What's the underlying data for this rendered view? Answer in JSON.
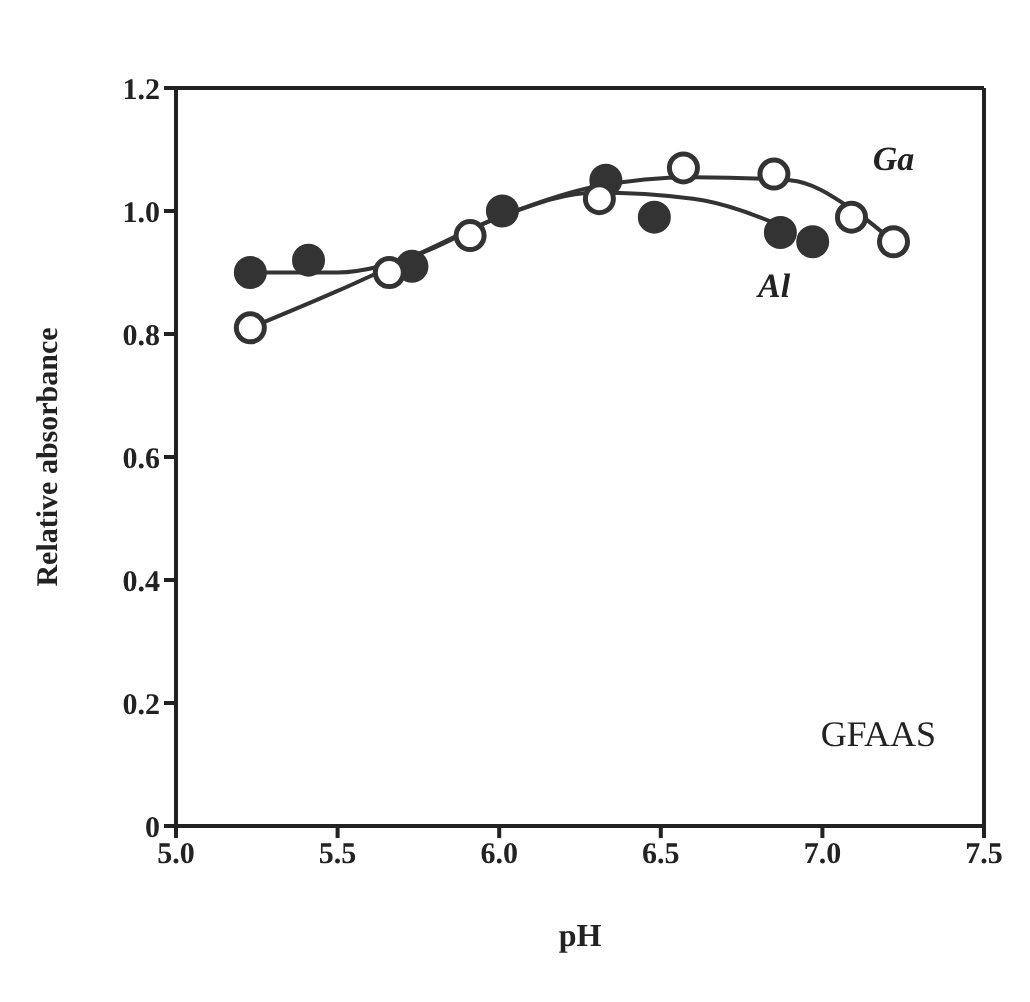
{
  "chart_data": {
    "type": "scatter",
    "xlabel": "pH",
    "ylabel": "Relative absorbance",
    "xlim": [
      5.0,
      7.5
    ],
    "xticks": [
      {
        "value": 5.0,
        "label": "5.0"
      },
      {
        "value": 5.5,
        "label": "5.5"
      },
      {
        "value": 6.0,
        "label": "6.0"
      },
      {
        "value": 6.5,
        "label": "6.5"
      },
      {
        "value": 7.0,
        "label": "7.0"
      },
      {
        "value": 7.5,
        "label": "7.5"
      }
    ],
    "ylim": [
      0,
      1.2
    ],
    "yticks": [
      0,
      {
        "value": 0.2,
        "label": "0.2"
      },
      {
        "value": 0.4,
        "label": "0.4"
      },
      {
        "value": 0.6,
        "label": "0.6"
      },
      {
        "value": 0.8,
        "label": "0.8"
      },
      {
        "value": 1.0,
        "label": "1.0"
      },
      {
        "value": 1.2,
        "label": "1.2"
      }
    ],
    "grid": false,
    "legend": false,
    "series": [
      {
        "marker": "circle",
        "color": "#333333",
        "x": [
          5.23,
          5.41,
          5.73,
          6.01,
          6.33,
          6.48,
          6.87,
          6.97
        ],
        "values": [
          0.9,
          0.92,
          0.91,
          1.0,
          1.05,
          0.99,
          0.965,
          0.95
        ]
      },
      {
        "marker": "circle",
        "color": "#ffffff",
        "x": [
          5.23,
          5.66,
          5.91,
          6.31,
          6.57,
          6.85,
          7.09,
          7.22
        ],
        "values": [
          0.81,
          0.9,
          0.96,
          1.02,
          1.07,
          1.06,
          0.99,
          0.95
        ]
      },
      {
        "type": "line",
        "marker": "none",
        "name": "Al",
        "color": "#333333",
        "x": [
          5.23,
          5.5,
          5.75,
          6.0,
          6.3,
          6.6,
          6.9
        ],
        "values": [
          0.9,
          0.9,
          0.93,
          0.99,
          1.03,
          1.02,
          0.97
        ]
      },
      {
        "type": "line",
        "marker": "none",
        "name": "Ga",
        "color": "#333333",
        "x": [
          5.23,
          5.5,
          5.75,
          6.0,
          6.3,
          6.6,
          6.9,
          7.1,
          7.22
        ],
        "values": [
          0.81,
          0.87,
          0.93,
          0.99,
          1.04,
          1.055,
          1.05,
          1.0,
          0.95
        ]
      }
    ],
    "annotations": [
      "GFAAS"
    ]
  }
}
